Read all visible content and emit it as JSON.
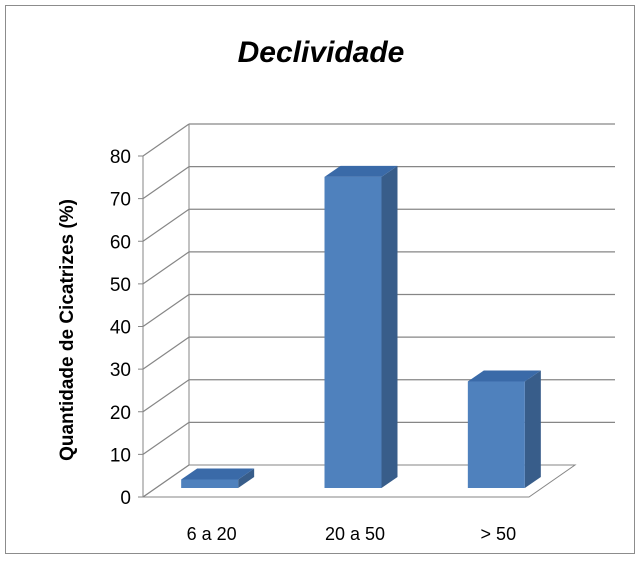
{
  "chart_data": {
    "type": "bar",
    "title": "Declividade",
    "xlabel": "",
    "ylabel": "Quantidade de Cicatrizes (%)",
    "categories": [
      "6 a 20",
      "20 a 50",
      "> 50"
    ],
    "values": [
      2,
      73,
      25
    ],
    "ylim": [
      0,
      80
    ],
    "yticks": [
      0,
      10,
      20,
      30,
      40,
      50,
      60,
      70,
      80
    ],
    "grid": true,
    "legend": "none",
    "colors": {
      "front": "#4f81bd",
      "side": "#385d8a",
      "top": "#3a6aa8",
      "grid": "#868686"
    }
  }
}
